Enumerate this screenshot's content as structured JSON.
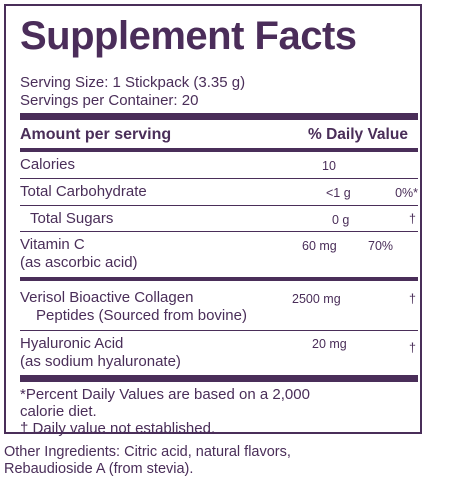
{
  "title": "Supplement Facts",
  "serving_size": "Serving Size: 1 Stickpack (3.35 g)",
  "servings_per_container": "Servings per Container: 20",
  "header": {
    "amount": "Amount per serving",
    "dv": "% Daily Value"
  },
  "rows": [
    {
      "name": "Calories",
      "amount": "10",
      "dv": ""
    },
    {
      "name": "Total Carbohydrate",
      "amount": "<1 g",
      "dv": "0%*"
    },
    {
      "name": "Total Sugars",
      "amount": "0 g",
      "dv": "†"
    },
    {
      "name": "Vitamin C",
      "sub": "(as ascorbic acid)",
      "amount": "60 mg",
      "dv": "70%"
    },
    {
      "name": "Verisol Bioactive Collagen",
      "sub": "Peptides (Sourced from bovine)",
      "amount": "2500 mg",
      "dv": "†"
    },
    {
      "name": "Hyaluronic Acid",
      "sub": "(as sodium hyaluronate)",
      "amount": "20 mg",
      "dv": "†"
    }
  ],
  "footnote_1a": "*Percent Daily Values are based on a 2,000",
  "footnote_1b": "calorie diet.",
  "footnote_2": "† Daily value not established.",
  "other_ingredients_a": "Other Ingredients: Citric acid, natural flavors,",
  "other_ingredients_b": "Rebaudioside A (from stevia)."
}
